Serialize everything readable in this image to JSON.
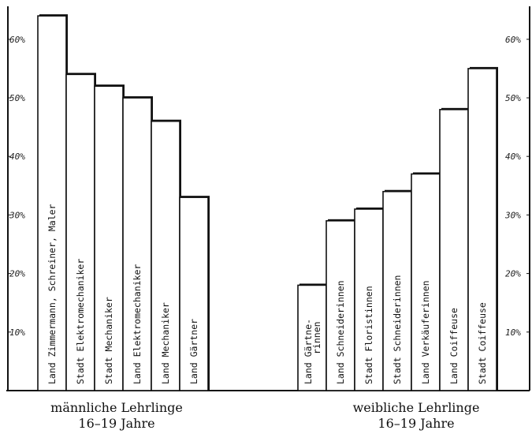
{
  "chart_data": [
    {
      "type": "bar",
      "title": "",
      "caption": [
        "männliche Lehrlinge",
        "16–19 Jahre"
      ],
      "ylim": [
        0,
        66
      ],
      "yticks": [
        "10%",
        "20%",
        "30%",
        "40%",
        "50%",
        "60%"
      ],
      "categories": [
        [
          "Land",
          "Zimmermann, Schreiner, Maler"
        ],
        [
          "Stadt",
          "Elektromechaniker"
        ],
        [
          "Stadt",
          "Mechaniker"
        ],
        [
          "Land",
          "Elektromechaniker"
        ],
        [
          "Land",
          "Mechaniker"
        ],
        [
          "Land",
          "Gärtner"
        ]
      ],
      "values": [
        64,
        54,
        52,
        50,
        46,
        33
      ]
    },
    {
      "type": "bar",
      "title": "",
      "caption": [
        "weibliche Lehrlinge",
        "16–19 Jahre"
      ],
      "ylim": [
        0,
        66
      ],
      "yticks": [
        "10%",
        "20%",
        "30%",
        "40%",
        "50%",
        "60%"
      ],
      "categories": [
        [
          "Land",
          "Gärtne-",
          "rinnen"
        ],
        [
          "Land",
          "Schneiderinnen"
        ],
        [
          "Stadt",
          "Floristinnen"
        ],
        [
          "Stadt",
          "Schneiderinnen"
        ],
        [
          "Land",
          "Verkäuferinnen"
        ],
        [
          "Land",
          "Coiffeuse"
        ],
        [
          "Stadt",
          "Coiffeuse"
        ]
      ],
      "values": [
        18,
        29,
        31,
        34,
        37,
        48,
        55
      ]
    }
  ]
}
